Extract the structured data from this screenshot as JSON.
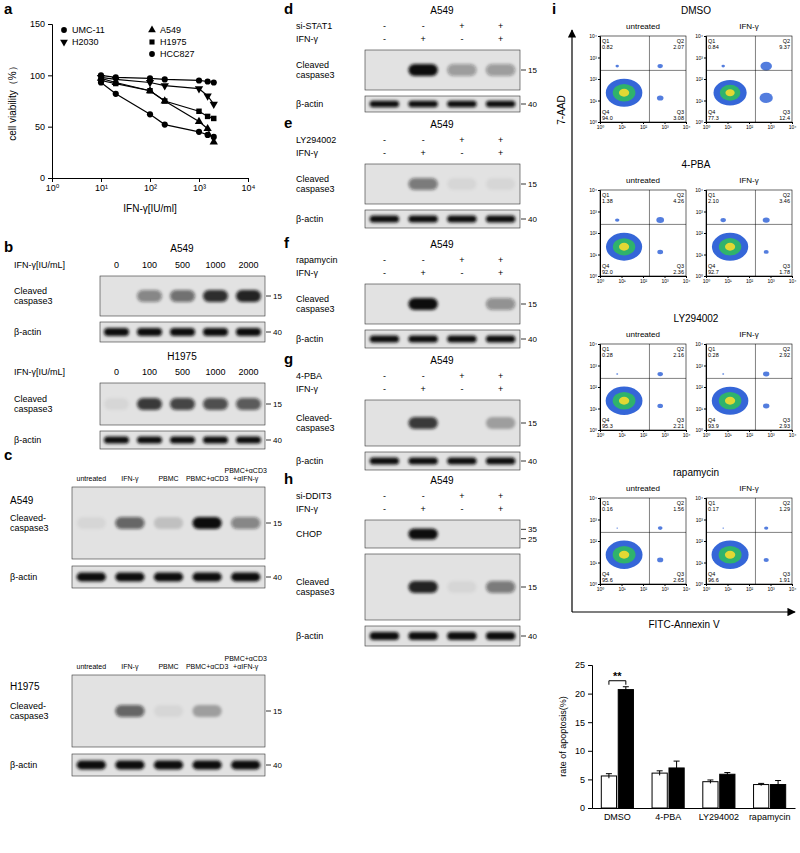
{
  "chart_data": [
    {
      "panel": "a",
      "type": "line",
      "x": [
        10,
        20,
        100,
        200,
        1000,
        1500,
        2000
      ],
      "series": [
        {
          "name": "UMC-11",
          "color": "#000000",
          "marker": "circle",
          "values": [
            100,
            98,
            97,
            96,
            95,
            94,
            93
          ]
        },
        {
          "name": "H2030",
          "color": "#000000",
          "marker": "triangle-down",
          "values": [
            98,
            96,
            93,
            90,
            87,
            80,
            72
          ]
        },
        {
          "name": "A549",
          "color": "#000000",
          "marker": "triangle",
          "values": [
            97,
            93,
            85,
            75,
            55,
            48,
            35
          ]
        },
        {
          "name": "H1975",
          "color": "#000000",
          "marker": "square",
          "values": [
            95,
            92,
            85,
            75,
            65,
            60,
            58
          ]
        },
        {
          "name": "HCC827",
          "color": "#000000",
          "marker": "circle",
          "values": [
            93,
            82,
            62,
            52,
            45,
            42,
            40
          ]
        }
      ],
      "x_label": "IFN-γ[IU/ml]",
      "y_label": "cell viability（%）",
      "log": "x",
      "xlim": [
        1,
        10000
      ],
      "xticks": [
        {
          "value": 1,
          "label": "10⁰"
        },
        {
          "value": 10,
          "label": "10¹"
        },
        {
          "value": 100,
          "label": "10²"
        },
        {
          "value": 1000,
          "label": "10³"
        },
        {
          "value": 10000,
          "label": "10⁴"
        }
      ],
      "ylim": [
        0,
        150
      ],
      "yticks": [
        0,
        50,
        100,
        150
      ],
      "legend": "top"
    },
    {
      "type": "bar",
      "categories": [
        "DMSO",
        "4-PBA",
        "LY294002",
        "rapamycin"
      ],
      "series": [
        {
          "color": "#ffffff",
          "values": [
            5.6,
            6.1,
            4.6,
            4.1
          ],
          "errors": [
            0.4,
            0.4,
            0.3,
            0.2
          ]
        },
        {
          "color": "#000000",
          "values": [
            20.7,
            7.0,
            5.9,
            4.1
          ],
          "errors": [
            0.5,
            1.2,
            0.3,
            0.7
          ]
        }
      ],
      "y_label": "rate of apoptosis(%)",
      "ylim": [
        0,
        25
      ],
      "yticks": [
        0,
        5,
        10,
        15,
        20,
        25
      ],
      "annotations": [
        {
          "text": "**",
          "category": "DMSO"
        }
      ]
    }
  ],
  "blots": [
    {
      "panel": "b",
      "blots": [
        {
          "cell": "A549",
          "conditions": [
            {
              "label": "IFN-γ[IU/mL]",
              "values": [
                0,
                100,
                500,
                1000,
                2000
              ]
            }
          ],
          "rows": [
            {
              "label": "Cleaved caspase3",
              "markers": [
                15
              ],
              "intensity": [
                0,
                0.45,
                0.55,
                0.85,
                0.9
              ]
            },
            {
              "label": "β-actin",
              "markers": [
                40
              ],
              "intensity": [
                1,
                1,
                1,
                1,
                1
              ]
            }
          ]
        },
        {
          "cell": "H1975",
          "conditions": [
            {
              "label": "IFN-γ[IU/mL]",
              "values": [
                0,
                100,
                500,
                1000,
                2000
              ]
            }
          ],
          "rows": [
            {
              "label": "Cleaved caspase3",
              "markers": [
                15
              ],
              "intensity": [
                0.05,
                0.8,
                0.75,
                0.7,
                0.65
              ]
            },
            {
              "label": "β-actin",
              "markers": [
                40
              ],
              "intensity": [
                1,
                1,
                1,
                1,
                1
              ]
            }
          ]
        }
      ]
    },
    {
      "panel": "c",
      "blots": [
        {
          "cell": "A549",
          "lanes": [
            "untreated",
            "IFN-γ",
            "PBMC",
            "PBMC+αCD3",
            "PBMC+αCD3+αIFN-γ"
          ],
          "rows": [
            {
              "label": "Cleaved-caspase3",
              "markers": [
                15
              ],
              "intensity": [
                0.05,
                0.6,
                0.15,
                1,
                0.45
              ]
            },
            {
              "label": "β-actin",
              "markers": [
                40
              ],
              "intensity": [
                1,
                1,
                1,
                1,
                1
              ]
            }
          ]
        },
        {
          "cell": "H1975",
          "lanes": [
            "untreated",
            "IFN-γ",
            "PBMC",
            "PBMC+αCD3",
            "PBMC+αCD3+αIFN-γ"
          ],
          "rows": [
            {
              "label": "Cleaved-caspase3",
              "markers": [
                15
              ],
              "intensity": [
                0,
                0.6,
                0.05,
                0.3,
                0
              ]
            },
            {
              "label": "β-actin",
              "markers": [
                40
              ],
              "intensity": [
                1,
                1,
                1,
                1,
                1
              ]
            }
          ]
        }
      ]
    },
    {
      "panel": "d",
      "blots": [
        {
          "cell": "A549",
          "conditions": [
            {
              "label": "si-STAT1",
              "values": [
                "-",
                "-",
                "+",
                "+"
              ]
            },
            {
              "label": "IFN-γ",
              "values": [
                "-",
                "+",
                "-",
                "+"
              ]
            }
          ],
          "rows": [
            {
              "label": "Cleaved caspase3",
              "markers": [
                15
              ],
              "intensity": [
                0,
                1,
                0.35,
                0.35
              ]
            },
            {
              "label": "β-actin",
              "markers": [
                40
              ],
              "intensity": [
                1,
                1,
                1,
                1
              ]
            }
          ]
        }
      ]
    },
    {
      "panel": "e",
      "blots": [
        {
          "cell": "A549",
          "conditions": [
            {
              "label": "LY294002",
              "values": [
                "-",
                "-",
                "+",
                "+"
              ]
            },
            {
              "label": "IFN-γ",
              "values": [
                "-",
                "+",
                "-",
                "+"
              ]
            }
          ],
          "rows": [
            {
              "label": "Cleaved caspase3",
              "markers": [
                15
              ],
              "intensity": [
                0,
                0.5,
                0.05,
                0.05
              ]
            },
            {
              "label": "β-actin",
              "markers": [
                40
              ],
              "intensity": [
                1,
                1,
                1,
                1
              ]
            }
          ]
        }
      ]
    },
    {
      "panel": "f",
      "blots": [
        {
          "cell": "A549",
          "conditions": [
            {
              "label": "rapamycin",
              "values": [
                "-",
                "-",
                "+",
                "+"
              ]
            },
            {
              "label": "IFN-γ",
              "values": [
                "-",
                "+",
                "-",
                "+"
              ]
            }
          ],
          "rows": [
            {
              "label": "Cleaved caspase3",
              "markers": [
                15
              ],
              "intensity": [
                0,
                1,
                0,
                0.4
              ]
            },
            {
              "label": "β-actin",
              "markers": [
                40
              ],
              "intensity": [
                1,
                1,
                1,
                1
              ]
            }
          ]
        }
      ]
    },
    {
      "panel": "g",
      "blots": [
        {
          "cell": "A549",
          "conditions": [
            {
              "label": "4-PBA",
              "values": [
                "-",
                "-",
                "+",
                "+"
              ]
            },
            {
              "label": "IFN-γ",
              "values": [
                "-",
                "+",
                "-",
                "+"
              ]
            }
          ],
          "rows": [
            {
              "label": "Cleaved-caspase3",
              "markers": [
                15
              ],
              "intensity": [
                0,
                0.8,
                0,
                0.3
              ]
            },
            {
              "label": "β-actin",
              "markers": [
                40
              ],
              "intensity": [
                1,
                1,
                1,
                1
              ]
            }
          ]
        }
      ]
    },
    {
      "panel": "h",
      "blots": [
        {
          "cell": "A549",
          "conditions": [
            {
              "label": "si-DDIT3",
              "values": [
                "-",
                "-",
                "+",
                "+"
              ]
            },
            {
              "label": "IFN-γ",
              "values": [
                "-",
                "+",
                "-",
                "+"
              ]
            }
          ],
          "rows": [
            {
              "label": "CHOP",
              "markers": [
                35,
                25
              ],
              "intensity": [
                0,
                1,
                0,
                0
              ]
            },
            {
              "label": "Cleaved caspase3",
              "markers": [
                15
              ],
              "intensity": [
                0,
                0.9,
                0.05,
                0.5
              ]
            },
            {
              "label": "β-actin",
              "markers": [
                40
              ],
              "intensity": [
                1,
                1,
                1,
                1
              ]
            }
          ]
        }
      ]
    }
  ],
  "flow": {
    "panel": "i",
    "x_label": "FITC-Annexin V",
    "y_label": "7-AAD",
    "xlim": [
      1,
      10000
    ],
    "ylim": [
      1,
      10000
    ],
    "ticks": [
      {
        "value": 1,
        "label": "10⁰"
      },
      {
        "value": 10,
        "label": "10¹"
      },
      {
        "value": 100,
        "label": "10²"
      },
      {
        "value": 1000,
        "label": "10³"
      },
      {
        "value": 10000,
        "label": "10⁴"
      }
    ],
    "groups": [
      {
        "name": "DMSO",
        "plots": [
          {
            "condition": "untreated",
            "quadrants": [
              {
                "name": "Q1",
                "value": 0.82
              },
              {
                "name": "Q2",
                "value": 2.07
              },
              {
                "name": "Q3",
                "value": 3.08
              },
              {
                "name": "Q4",
                "value": 94,
                "label": "94.0"
              }
            ]
          },
          {
            "condition": "IFN-γ",
            "quadrants": [
              {
                "name": "Q1",
                "value": 0.84
              },
              {
                "name": "Q2",
                "value": 9.37
              },
              {
                "name": "Q3",
                "value": 12.4
              },
              {
                "name": "Q4",
                "value": 77.3
              }
            ]
          }
        ]
      },
      {
        "name": "4-PBA",
        "plots": [
          {
            "condition": "untreated",
            "quadrants": [
              {
                "name": "Q1",
                "value": 1.38
              },
              {
                "name": "Q2",
                "value": 4.26
              },
              {
                "name": "Q3",
                "value": 2.36
              },
              {
                "name": "Q4",
                "value": 92,
                "label": "92.0"
              }
            ]
          },
          {
            "condition": "IFN-γ",
            "quadrants": [
              {
                "name": "Q1",
                "value": 2.1,
                "label": "2.10"
              },
              {
                "name": "Q2",
                "value": 3.46
              },
              {
                "name": "Q3",
                "value": 1.78
              },
              {
                "name": "Q4",
                "value": 92.7
              }
            ]
          }
        ]
      },
      {
        "name": "LY294002",
        "plots": [
          {
            "condition": "untreated",
            "quadrants": [
              {
                "name": "Q1",
                "value": 0.28
              },
              {
                "name": "Q2",
                "value": 2.16
              },
              {
                "name": "Q3",
                "value": 2.21
              },
              {
                "name": "Q4",
                "value": 95.3
              }
            ]
          },
          {
            "condition": "IFN-γ",
            "quadrants": [
              {
                "name": "Q1",
                "value": 0.28
              },
              {
                "name": "Q2",
                "value": 2.92
              },
              {
                "name": "Q3",
                "value": 2.93
              },
              {
                "name": "Q4",
                "value": 93.9
              }
            ]
          }
        ]
      },
      {
        "name": "rapamycin",
        "plots": [
          {
            "condition": "untreated",
            "quadrants": [
              {
                "name": "Q1",
                "value": 0.16
              },
              {
                "name": "Q2",
                "value": 1.56
              },
              {
                "name": "Q3",
                "value": 2.65
              },
              {
                "name": "Q4",
                "value": 95.6
              }
            ]
          },
          {
            "condition": "IFN-γ",
            "quadrants": [
              {
                "name": "Q1",
                "value": 0.17
              },
              {
                "name": "Q2",
                "value": 1.29
              },
              {
                "name": "Q3",
                "value": 1.91
              },
              {
                "name": "Q4",
                "value": 96.6
              }
            ]
          }
        ]
      }
    ]
  }
}
